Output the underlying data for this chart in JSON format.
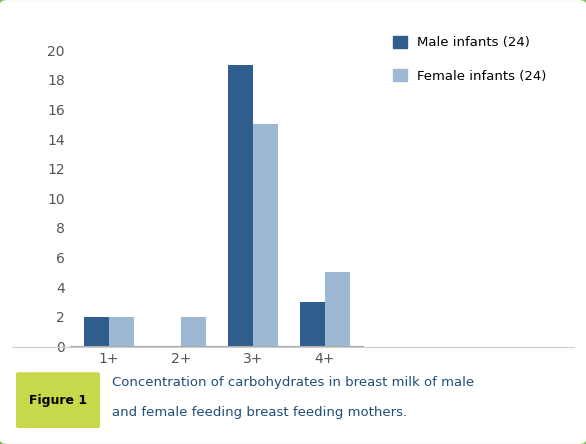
{
  "categories": [
    "1+",
    "2+",
    "3+",
    "4+"
  ],
  "male_values": [
    2,
    0,
    19,
    3
  ],
  "female_values": [
    2,
    2,
    15,
    5
  ],
  "male_color": "#2E5D8E",
  "female_color": "#9DB8D2",
  "legend_labels": [
    "Male infants (24)",
    "Female infants (24)"
  ],
  "ylim": [
    0,
    21
  ],
  "yticks": [
    0,
    2,
    4,
    6,
    8,
    10,
    12,
    14,
    16,
    18,
    20
  ],
  "bar_width": 0.35,
  "figure_caption_line1": "Concentration of carbohydrates in breast milk of male",
  "figure_caption_line2": "and female feeding breast feeding mothers.",
  "figure_label": "Figure 1",
  "figure_label_bg": "#C8D84B",
  "outer_border_color": "#78BE46",
  "background_color": "#FFFFFF",
  "caption_text_color": "#1F4E79",
  "tick_label_color": "#555555"
}
